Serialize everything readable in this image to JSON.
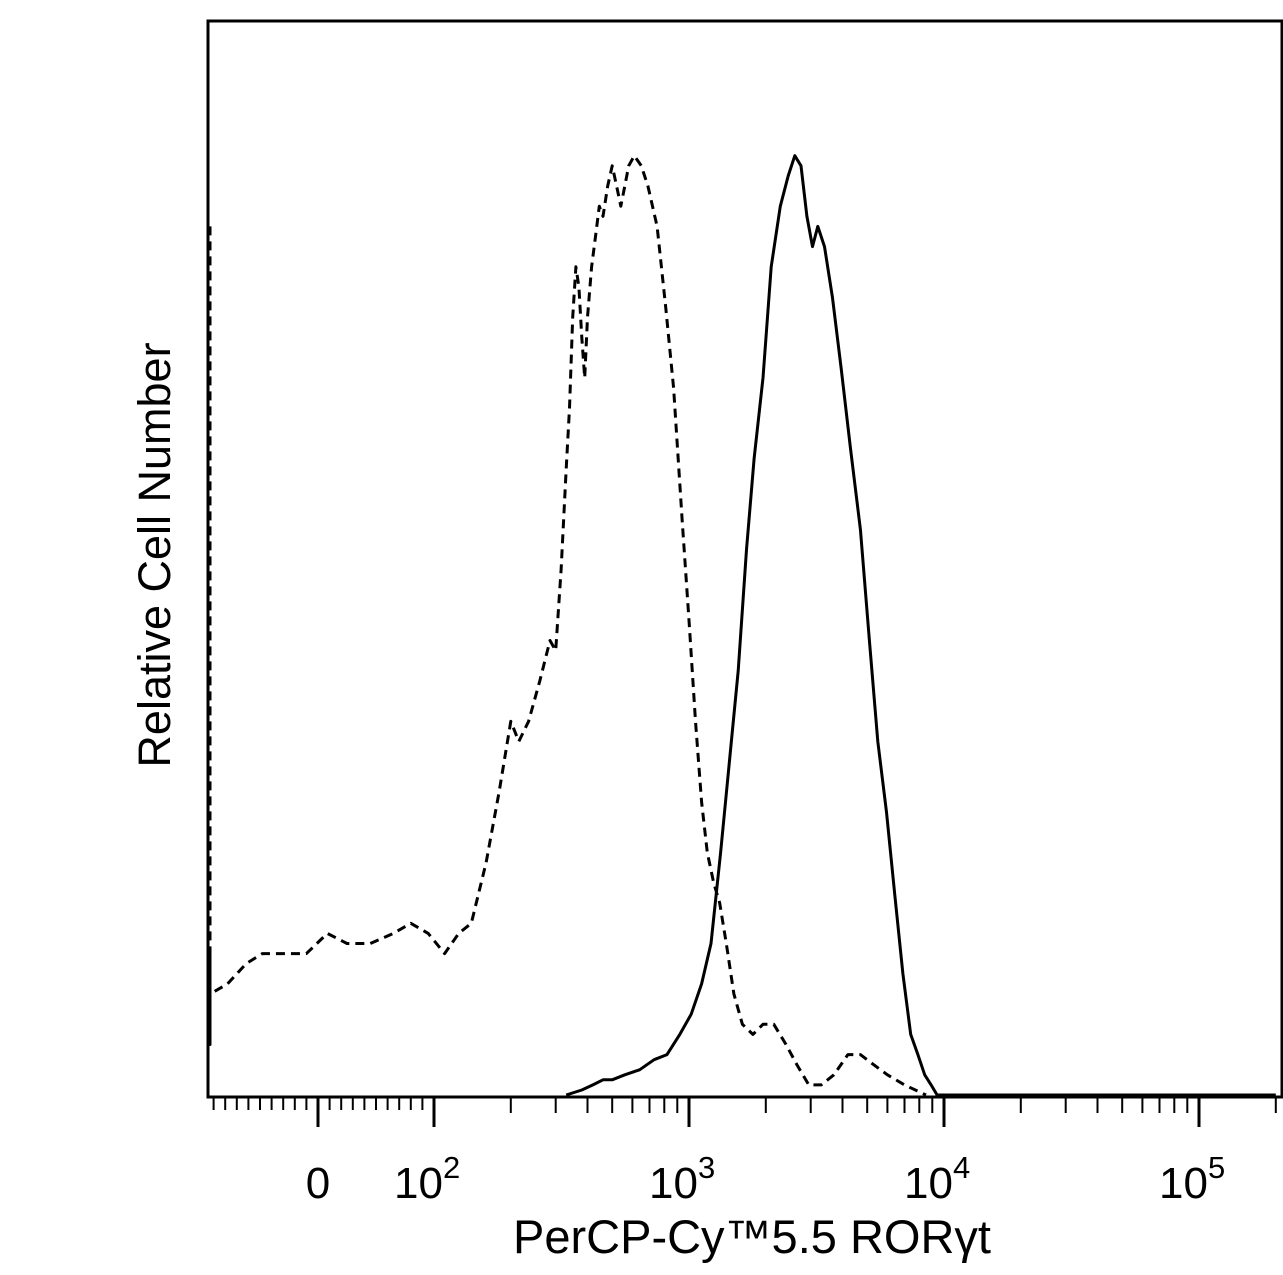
{
  "chart_data": {
    "type": "line",
    "title": "",
    "xlabel": "PerCP-Cy™5.5  RORγt",
    "ylabel": "Relative Cell Number",
    "x_scale": "biexponential",
    "x_ticks": [
      {
        "value": 0,
        "base": "0",
        "exp": ""
      },
      {
        "value": 100,
        "base": "10",
        "exp": "2"
      },
      {
        "value": 1000,
        "base": "10",
        "exp": "3"
      },
      {
        "value": 10000,
        "base": "10",
        "exp": "4"
      },
      {
        "value": 100000,
        "base": "10",
        "exp": "5"
      }
    ],
    "y_range": [
      0,
      100
    ],
    "grid": false,
    "legend": "none",
    "series": [
      {
        "style": "dashed",
        "color": "#000000",
        "points": [
          [
            -270,
            86
          ],
          [
            -265,
            67
          ],
          [
            -260,
            40
          ],
          [
            -255,
            12
          ],
          [
            -250,
            5
          ],
          [
            -240,
            5
          ],
          [
            -215,
            5
          ],
          [
            -195,
            7
          ],
          [
            -175,
            10
          ],
          [
            -160,
            13
          ],
          [
            -145,
            14
          ],
          [
            -132,
            13
          ],
          [
            -120,
            10
          ],
          [
            -108,
            9
          ],
          [
            -95,
            10
          ],
          [
            -78,
            11
          ],
          [
            -62,
            13
          ],
          [
            -48,
            14
          ],
          [
            -30,
            14
          ],
          [
            -10,
            14
          ],
          [
            8,
            16
          ],
          [
            25,
            15
          ],
          [
            45,
            15
          ],
          [
            65,
            16
          ],
          [
            80,
            17
          ],
          [
            95,
            16
          ],
          [
            110,
            14
          ],
          [
            125,
            16
          ],
          [
            140,
            17
          ],
          [
            160,
            23
          ],
          [
            180,
            30
          ],
          [
            200,
            37
          ],
          [
            215,
            35
          ],
          [
            235,
            37
          ],
          [
            260,
            41
          ],
          [
            285,
            45
          ],
          [
            300,
            44
          ],
          [
            315,
            52
          ],
          [
            330,
            62
          ],
          [
            340,
            68
          ],
          [
            350,
            77
          ],
          [
            360,
            82
          ],
          [
            370,
            80
          ],
          [
            380,
            75
          ],
          [
            390,
            71
          ],
          [
            400,
            77
          ],
          [
            415,
            82
          ],
          [
            430,
            85
          ],
          [
            445,
            88
          ],
          [
            460,
            87
          ],
          [
            480,
            90
          ],
          [
            500,
            92
          ],
          [
            520,
            90
          ],
          [
            540,
            88
          ],
          [
            560,
            90
          ],
          [
            580,
            92
          ],
          [
            610,
            93
          ],
          [
            650,
            92
          ],
          [
            690,
            90
          ],
          [
            750,
            86
          ],
          [
            810,
            78
          ],
          [
            870,
            70
          ],
          [
            940,
            57
          ],
          [
            1000,
            47
          ],
          [
            1060,
            37
          ],
          [
            1120,
            29
          ],
          [
            1180,
            24
          ],
          [
            1250,
            21
          ],
          [
            1320,
            19
          ],
          [
            1400,
            15
          ],
          [
            1500,
            10
          ],
          [
            1620,
            7
          ],
          [
            1780,
            6
          ],
          [
            1950,
            7
          ],
          [
            2150,
            7
          ],
          [
            2400,
            5
          ],
          [
            2650,
            3
          ],
          [
            2950,
            1
          ],
          [
            3300,
            1
          ],
          [
            3700,
            2
          ],
          [
            4200,
            4
          ],
          [
            4700,
            4
          ],
          [
            5300,
            3
          ],
          [
            6000,
            2
          ],
          [
            7000,
            1
          ],
          [
            8500,
            0
          ]
        ]
      },
      {
        "style": "solid",
        "color": "#000000",
        "points": [
          [
            330,
            0
          ],
          [
            380,
            0.5
          ],
          [
            420,
            1
          ],
          [
            460,
            1.5
          ],
          [
            500,
            1.5
          ],
          [
            560,
            2
          ],
          [
            640,
            2.5
          ],
          [
            730,
            3.5
          ],
          [
            820,
            4
          ],
          [
            920,
            6
          ],
          [
            1020,
            8
          ],
          [
            1120,
            11
          ],
          [
            1220,
            15
          ],
          [
            1330,
            24
          ],
          [
            1440,
            33
          ],
          [
            1560,
            42
          ],
          [
            1680,
            54
          ],
          [
            1800,
            63
          ],
          [
            1950,
            71
          ],
          [
            2100,
            82
          ],
          [
            2280,
            88
          ],
          [
            2450,
            91
          ],
          [
            2600,
            93
          ],
          [
            2750,
            92
          ],
          [
            2900,
            87
          ],
          [
            3050,
            84
          ],
          [
            3200,
            86
          ],
          [
            3400,
            84
          ],
          [
            3650,
            79
          ],
          [
            3950,
            72
          ],
          [
            4300,
            64
          ],
          [
            4700,
            56
          ],
          [
            5100,
            45
          ],
          [
            5500,
            35
          ],
          [
            5950,
            28
          ],
          [
            6400,
            20
          ],
          [
            6900,
            12
          ],
          [
            7400,
            6
          ],
          [
            7900,
            4
          ],
          [
            8400,
            2
          ],
          [
            8900,
            1
          ],
          [
            9400,
            0
          ],
          [
            11000,
            0
          ],
          [
            30000,
            0
          ],
          [
            100000,
            0
          ],
          [
            200000,
            0
          ]
        ]
      }
    ]
  }
}
